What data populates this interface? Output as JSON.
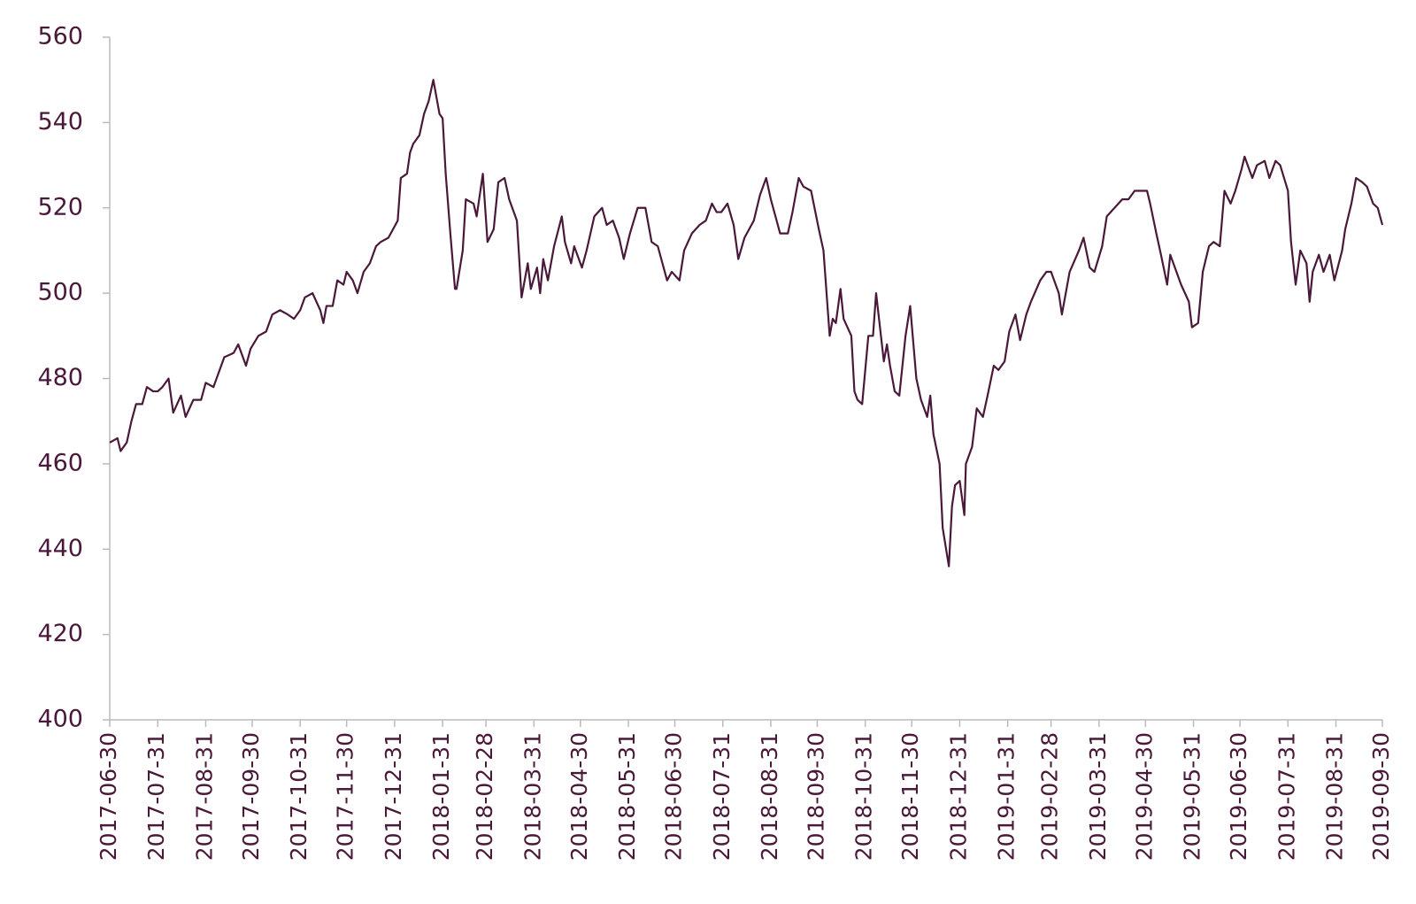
{
  "chart_data": {
    "type": "line",
    "color": "#4a1838",
    "x": [
      "2017-06-30",
      "2017-07-05",
      "2017-07-07",
      "2017-07-11",
      "2017-07-14",
      "2017-07-17",
      "2017-07-21",
      "2017-07-24",
      "2017-07-28",
      "2017-07-31",
      "2017-08-03",
      "2017-08-07",
      "2017-08-10",
      "2017-08-15",
      "2017-08-18",
      "2017-08-23",
      "2017-08-28",
      "2017-08-31",
      "2017-09-05",
      "2017-09-08",
      "2017-09-12",
      "2017-09-18",
      "2017-09-21",
      "2017-09-26",
      "2017-09-29",
      "2017-10-04",
      "2017-10-09",
      "2017-10-13",
      "2017-10-18",
      "2017-10-23",
      "2017-10-27",
      "2017-10-31",
      "2017-11-03",
      "2017-11-08",
      "2017-11-13",
      "2017-11-15",
      "2017-11-17",
      "2017-11-21",
      "2017-11-24",
      "2017-11-28",
      "2017-11-30",
      "2017-12-04",
      "2017-12-07",
      "2017-12-11",
      "2017-12-15",
      "2017-12-19",
      "2017-12-22",
      "2017-12-27",
      "2018-01-02",
      "2018-01-04",
      "2018-01-08",
      "2018-01-10",
      "2018-01-12",
      "2018-01-16",
      "2018-01-19",
      "2018-01-22",
      "2018-01-25",
      "2018-01-26",
      "2018-01-29",
      "2018-01-31",
      "2018-02-02",
      "2018-02-05",
      "2018-02-08",
      "2018-02-09",
      "2018-02-13",
      "2018-02-15",
      "2018-02-20",
      "2018-02-22",
      "2018-02-26",
      "2018-03-01",
      "2018-03-05",
      "2018-03-08",
      "2018-03-12",
      "2018-03-15",
      "2018-03-20",
      "2018-03-23",
      "2018-03-27",
      "2018-03-29",
      "2018-04-02",
      "2018-04-04",
      "2018-04-06",
      "2018-04-09",
      "2018-04-13",
      "2018-04-18",
      "2018-04-20",
      "2018-04-24",
      "2018-04-26",
      "2018-05-01",
      "2018-05-04",
      "2018-05-09",
      "2018-05-14",
      "2018-05-17",
      "2018-05-21",
      "2018-05-25",
      "2018-05-28",
      "2018-06-01",
      "2018-06-06",
      "2018-06-11",
      "2018-06-15",
      "2018-06-19",
      "2018-06-25",
      "2018-06-28",
      "2018-07-03",
      "2018-07-06",
      "2018-07-11",
      "2018-07-16",
      "2018-07-20",
      "2018-07-24",
      "2018-07-27",
      "2018-07-30",
      "2018-08-03",
      "2018-08-07",
      "2018-08-10",
      "2018-08-14",
      "2018-08-20",
      "2018-08-24",
      "2018-08-28",
      "2018-08-31",
      "2018-09-06",
      "2018-09-11",
      "2018-09-14",
      "2018-09-18",
      "2018-09-21",
      "2018-09-26",
      "2018-10-01",
      "2018-10-04",
      "2018-10-08",
      "2018-10-10",
      "2018-10-12",
      "2018-10-15",
      "2018-10-17",
      "2018-10-22",
      "2018-10-24",
      "2018-10-26",
      "2018-10-29",
      "2018-11-02",
      "2018-11-05",
      "2018-11-07",
      "2018-11-12",
      "2018-11-14",
      "2018-11-16",
      "2018-11-19",
      "2018-11-22",
      "2018-11-26",
      "2018-11-29",
      "2018-12-03",
      "2018-12-06",
      "2018-12-10",
      "2018-12-12",
      "2018-12-14",
      "2018-12-18",
      "2018-12-20",
      "2018-12-24",
      "2018-12-26",
      "2018-12-28",
      "2018-12-31",
      "2019-01-03",
      "2019-01-04",
      "2019-01-08",
      "2019-01-11",
      "2019-01-15",
      "2019-01-18",
      "2019-01-22",
      "2019-01-25",
      "2019-01-29",
      "2019-02-01",
      "2019-02-05",
      "2019-02-08",
      "2019-02-12",
      "2019-02-15",
      "2019-02-21",
      "2019-02-25",
      "2019-02-28",
      "2019-03-05",
      "2019-03-07",
      "2019-03-12",
      "2019-03-18",
      "2019-03-21",
      "2019-03-25",
      "2019-03-28",
      "2019-04-02",
      "2019-04-05",
      "2019-04-10",
      "2019-04-15",
      "2019-04-19",
      "2019-04-23",
      "2019-04-26",
      "2019-05-01",
      "2019-05-03",
      "2019-05-07",
      "2019-05-10",
      "2019-05-14",
      "2019-05-16",
      "2019-05-20",
      "2019-05-23",
      "2019-05-28",
      "2019-05-30",
      "2019-06-03",
      "2019-06-06",
      "2019-06-10",
      "2019-06-13",
      "2019-06-17",
      "2019-06-20",
      "2019-06-24",
      "2019-06-27",
      "2019-07-01",
      "2019-07-03",
      "2019-07-08",
      "2019-07-11",
      "2019-07-16",
      "2019-07-19",
      "2019-07-23",
      "2019-07-26",
      "2019-07-31",
      "2019-08-02",
      "2019-08-05",
      "2019-08-08",
      "2019-08-12",
      "2019-08-14",
      "2019-08-16",
      "2019-08-20",
      "2019-08-23",
      "2019-08-27",
      "2019-08-30",
      "2019-09-04",
      "2019-09-06",
      "2019-09-10",
      "2019-09-13",
      "2019-09-17",
      "2019-09-20",
      "2019-09-24",
      "2019-09-27",
      "2019-09-30"
    ],
    "values": [
      465,
      466,
      463,
      465,
      470,
      474,
      474,
      478,
      477,
      477,
      478,
      480,
      472,
      476,
      471,
      475,
      475,
      479,
      478,
      481,
      485,
      486,
      488,
      483,
      487,
      490,
      491,
      495,
      496,
      495,
      494,
      496,
      499,
      500,
      496,
      493,
      497,
      497,
      503,
      502,
      505,
      503,
      500,
      505,
      507,
      511,
      512,
      513,
      517,
      527,
      528,
      533,
      535,
      537,
      542,
      545,
      550,
      548,
      542,
      541,
      528,
      514,
      501,
      501,
      510,
      522,
      521,
      518,
      528,
      512,
      515,
      526,
      527,
      522,
      517,
      499,
      507,
      501,
      506,
      500,
      508,
      503,
      511,
      518,
      512,
      507,
      511,
      506,
      510,
      518,
      520,
      516,
      517,
      513,
      508,
      514,
      520,
      520,
      512,
      511,
      503,
      505,
      503,
      510,
      514,
      516,
      517,
      521,
      519,
      519,
      521,
      516,
      508,
      513,
      517,
      523,
      527,
      522,
      514,
      514,
      519,
      527,
      525,
      524,
      515,
      510,
      490,
      494,
      493,
      501,
      494,
      490,
      477,
      475,
      474,
      490,
      490,
      500,
      484,
      488,
      483,
      477,
      476,
      490,
      497,
      480,
      475,
      471,
      476,
      467,
      460,
      445,
      436,
      450,
      455,
      456,
      448,
      460,
      464,
      473,
      471,
      476,
      483,
      482,
      484,
      491,
      495,
      489,
      495,
      498,
      503,
      505,
      505,
      500,
      495,
      505,
      510,
      513,
      506,
      505,
      511,
      518,
      520,
      522,
      522,
      524,
      524,
      524,
      521,
      514,
      509,
      502,
      509,
      505,
      502,
      498,
      492,
      493,
      505,
      511,
      512,
      511,
      524,
      521,
      524,
      529,
      532,
      527,
      530,
      531,
      527,
      531,
      530,
      524,
      512,
      502,
      510,
      507,
      498,
      505,
      509,
      505,
      509,
      503,
      510,
      515,
      521,
      527,
      526,
      525,
      521,
      520,
      516
    ],
    "xlim": [
      "2017-06-30",
      "2019-09-30"
    ],
    "xticks": [
      "2017-06-30",
      "2017-07-31",
      "2017-08-31",
      "2017-09-30",
      "2017-10-31",
      "2017-11-30",
      "2017-12-31",
      "2018-01-31",
      "2018-02-28",
      "2018-03-31",
      "2018-04-30",
      "2018-05-31",
      "2018-06-30",
      "2018-07-31",
      "2018-08-31",
      "2018-09-30",
      "2018-10-31",
      "2018-11-30",
      "2018-12-31",
      "2019-01-31",
      "2019-02-28",
      "2019-03-31",
      "2019-04-30",
      "2019-05-31",
      "2019-06-30",
      "2019-07-31",
      "2019-08-31",
      "2019-09-30"
    ],
    "ylim": [
      400,
      560
    ],
    "yticks": [
      400,
      420,
      440,
      460,
      480,
      500,
      520,
      540,
      560
    ],
    "grid": false
  }
}
